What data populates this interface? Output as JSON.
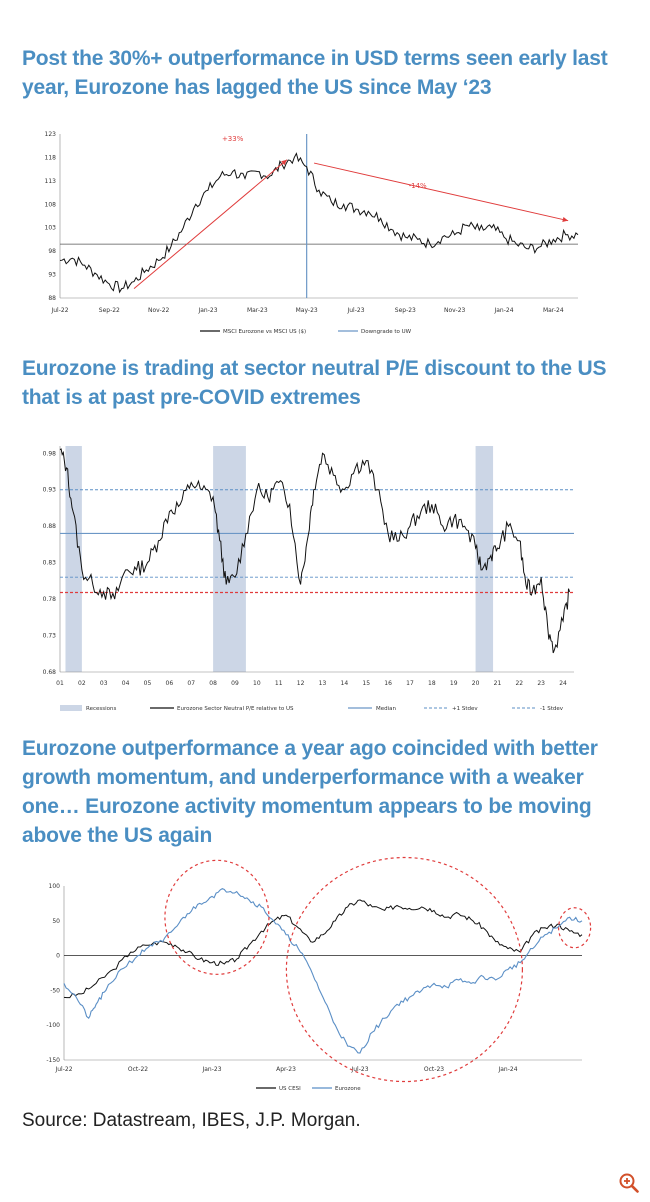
{
  "headings": {
    "h1": "Post the 30%+ outperformance in USD terms seen early last year, Eurozone has lagged the US since May ‘23",
    "h2": "Eurozone is trading at sector neutral P/E discount to the US that is at past pre-COVID extremes",
    "h3": "Eurozone outperformance a year ago coincided with better growth momentum, and underperformance with a weaker one… Eurozone activity momentum appears to be moving above the US again"
  },
  "source": "Source: Datastream, IBES, J.P. Morgan.",
  "zoom_icon": "zoom-in-icon",
  "colors": {
    "heading": "#4a8ec2",
    "accent_red": "#e03c3c",
    "series_blue": "#5b8fc6",
    "recession": "#ccd6e6"
  },
  "chart_data": [
    {
      "type": "line",
      "id": "relative-performance",
      "title": "",
      "ylim": [
        88,
        123
      ],
      "yticks": [
        "123",
        "118",
        "113",
        "108",
        "103",
        "98",
        "93",
        "88"
      ],
      "ytick_values": [
        123,
        118,
        113,
        108,
        103,
        98,
        93,
        88
      ],
      "xlim": [
        0,
        21
      ],
      "xticks": [
        "Jul-22",
        "Sep-22",
        "Nov-22",
        "Jan-23",
        "Mar-23",
        "May-23",
        "Jul-23",
        "Sep-23",
        "Nov-23",
        "Jan-24",
        "Mar-24"
      ],
      "xtick_positions": [
        0,
        2,
        4,
        6,
        8,
        10,
        12,
        14,
        16,
        18,
        20
      ],
      "reference_line": 99.5,
      "vertical_line_x": 10,
      "arrows": [
        {
          "from": [
            3,
            90
          ],
          "to": [
            9.2,
            117.5
          ]
        },
        {
          "from": [
            10.3,
            116.8
          ],
          "to": [
            20.6,
            104.5
          ]
        }
      ],
      "annotations": [
        {
          "text": "+33%",
          "x": 7,
          "y": 121.5
        },
        {
          "text": "-14%",
          "x": 14.5,
          "y": 111.5
        }
      ],
      "series": [
        {
          "name": "MSCI Eurozone vs MSCI US ($)",
          "x": [
            0,
            0.5,
            1,
            1.5,
            2,
            2.5,
            3,
            3.5,
            4,
            4.5,
            5,
            5.5,
            6,
            6.5,
            7,
            7.5,
            8,
            8.5,
            9,
            9.5,
            10,
            10.5,
            11,
            11.5,
            12,
            12.5,
            13,
            13.5,
            14,
            14.5,
            15,
            15.5,
            16,
            16.5,
            17,
            17.5,
            18,
            18.5,
            19,
            19.5,
            20,
            20.5,
            21
          ],
          "y": [
            96,
            96.5,
            95,
            93,
            91,
            90,
            91.5,
            94,
            96,
            99,
            103,
            108,
            111,
            114,
            115,
            113.5,
            115,
            114,
            116.5,
            118,
            116,
            111,
            108.5,
            108,
            107,
            106.5,
            105,
            102.5,
            101,
            100.5,
            99.5,
            101,
            101.5,
            103.5,
            102.5,
            103,
            101,
            99.5,
            98.5,
            99,
            100.5,
            101.5,
            101.5
          ]
        },
        {
          "name": "Downgrade to UW",
          "x": [],
          "y": []
        }
      ],
      "legend": [
        "MSCI Eurozone vs MSCI US ($)",
        "Downgrade to UW"
      ]
    },
    {
      "type": "line",
      "id": "pe-discount",
      "title": "",
      "ylim": [
        0.68,
        0.99
      ],
      "yticks": [
        "0.98",
        "0.93",
        "0.88",
        "0.83",
        "0.78",
        "0.73",
        "0.68"
      ],
      "ytick_values": [
        0.98,
        0.93,
        0.88,
        0.83,
        0.78,
        0.73,
        0.68
      ],
      "xlim": [
        2001,
        2024.5
      ],
      "xticks": [
        "01",
        "02",
        "03",
        "04",
        "05",
        "06",
        "07",
        "08",
        "09",
        "10",
        "11",
        "12",
        "13",
        "14",
        "15",
        "16",
        "17",
        "18",
        "19",
        "20",
        "21",
        "22",
        "23",
        "24"
      ],
      "xtick_positions": [
        2001,
        2002,
        2003,
        2004,
        2005,
        2006,
        2007,
        2008,
        2009,
        2010,
        2011,
        2012,
        2013,
        2014,
        2015,
        2016,
        2017,
        2018,
        2019,
        2020,
        2021,
        2022,
        2023,
        2024
      ],
      "recessions": [
        [
          2001.25,
          2002.0
        ],
        [
          2008.0,
          2009.5
        ],
        [
          2020.0,
          2020.8
        ]
      ],
      "median": 0.87,
      "plus_1_stdev": 0.93,
      "minus_1_stdev": 0.81,
      "red_reference": 0.789,
      "series": [
        {
          "name": "Eurozone Sector Neutral P/E relative to US",
          "x": [
            2001,
            2001.3,
            2001.6,
            2002,
            2002.5,
            2003,
            2003.5,
            2004,
            2004.5,
            2005,
            2005.5,
            2006,
            2006.5,
            2007,
            2007.5,
            2008,
            2008.3,
            2008.6,
            2009,
            2009.5,
            2010,
            2010.5,
            2011,
            2011.5,
            2012,
            2012.3,
            2012.6,
            2013,
            2013.5,
            2014,
            2014.5,
            2015,
            2015.5,
            2016,
            2016.5,
            2017,
            2017.5,
            2018,
            2018.5,
            2019,
            2019.5,
            2020,
            2020.3,
            2020.7,
            2021,
            2021.5,
            2022,
            2022.3,
            2022.6,
            2023,
            2023.3,
            2023.6,
            2024,
            2024.3
          ],
          "y": [
            0.985,
            0.96,
            0.9,
            0.82,
            0.8,
            0.79,
            0.78,
            0.82,
            0.82,
            0.83,
            0.86,
            0.9,
            0.91,
            0.94,
            0.93,
            0.92,
            0.86,
            0.8,
            0.81,
            0.87,
            0.93,
            0.92,
            0.94,
            0.91,
            0.8,
            0.86,
            0.93,
            0.98,
            0.95,
            0.93,
            0.96,
            0.97,
            0.93,
            0.87,
            0.86,
            0.88,
            0.9,
            0.91,
            0.88,
            0.89,
            0.88,
            0.85,
            0.82,
            0.84,
            0.85,
            0.88,
            0.86,
            0.8,
            0.79,
            0.81,
            0.74,
            0.71,
            0.75,
            0.79
          ]
        }
      ],
      "legend": [
        "Recessions",
        "Eurozone Sector Neutral P/E relative to US",
        "Median",
        "+1 Stdev",
        "-1 Stdev"
      ]
    },
    {
      "type": "line",
      "id": "economic-surprise",
      "title": "",
      "ylim": [
        -150,
        100
      ],
      "yticks": [
        "100",
        "50",
        "0",
        "-50",
        "-100",
        "-150"
      ],
      "ytick_values": [
        100,
        50,
        0,
        -50,
        -100,
        -150
      ],
      "xlim": [
        0,
        21
      ],
      "xticks": [
        "Jul-22",
        "Oct-22",
        "Jan-23",
        "Apr-23",
        "Jul-23",
        "Oct-23",
        "Jan-24"
      ],
      "xtick_positions": [
        0,
        3,
        6,
        9,
        12,
        15,
        18
      ],
      "highlight_circles": 3,
      "series": [
        {
          "name": "US CESI",
          "x": [
            0,
            0.7,
            1.3,
            2,
            2.7,
            3.3,
            4,
            4.5,
            5,
            5.5,
            6,
            6.5,
            7,
            7.5,
            8,
            8.5,
            9,
            9.5,
            10,
            10.5,
            11,
            11.5,
            12,
            12.5,
            13,
            13.5,
            14,
            14.5,
            15,
            15.5,
            16,
            16.5,
            17,
            17.5,
            18,
            18.5,
            19,
            19.5,
            20,
            20.5,
            21
          ],
          "y": [
            -60,
            -55,
            -40,
            -20,
            5,
            15,
            20,
            15,
            5,
            -5,
            -10,
            -12,
            -5,
            15,
            35,
            50,
            58,
            40,
            20,
            30,
            50,
            70,
            80,
            70,
            65,
            72,
            68,
            70,
            65,
            55,
            60,
            52,
            40,
            20,
            10,
            5,
            30,
            40,
            45,
            35,
            30
          ]
        },
        {
          "name": "Eurozone",
          "x": [
            0,
            0.5,
            1,
            1.3,
            1.7,
            2.3,
            3,
            3.5,
            4,
            4.5,
            5,
            5.5,
            6,
            6.5,
            7,
            7.5,
            8,
            8.5,
            9,
            9.5,
            10,
            10.5,
            11,
            11.5,
            12,
            12.5,
            13,
            13.5,
            14,
            14.5,
            15,
            15.5,
            16,
            16.5,
            17,
            17.5,
            18,
            18.5,
            19,
            19.5,
            20,
            20.5,
            21
          ],
          "y": [
            -40,
            -60,
            -90,
            -70,
            -50,
            -20,
            0,
            15,
            20,
            40,
            60,
            75,
            85,
            95,
            92,
            80,
            70,
            50,
            30,
            10,
            -20,
            -60,
            -100,
            -130,
            -140,
            -110,
            -90,
            -70,
            -60,
            -50,
            -40,
            -45,
            -35,
            -40,
            -30,
            -35,
            -20,
            -10,
            10,
            30,
            40,
            55,
            50
          ]
        }
      ],
      "legend": [
        "US CESI",
        "Eurozone"
      ]
    }
  ]
}
